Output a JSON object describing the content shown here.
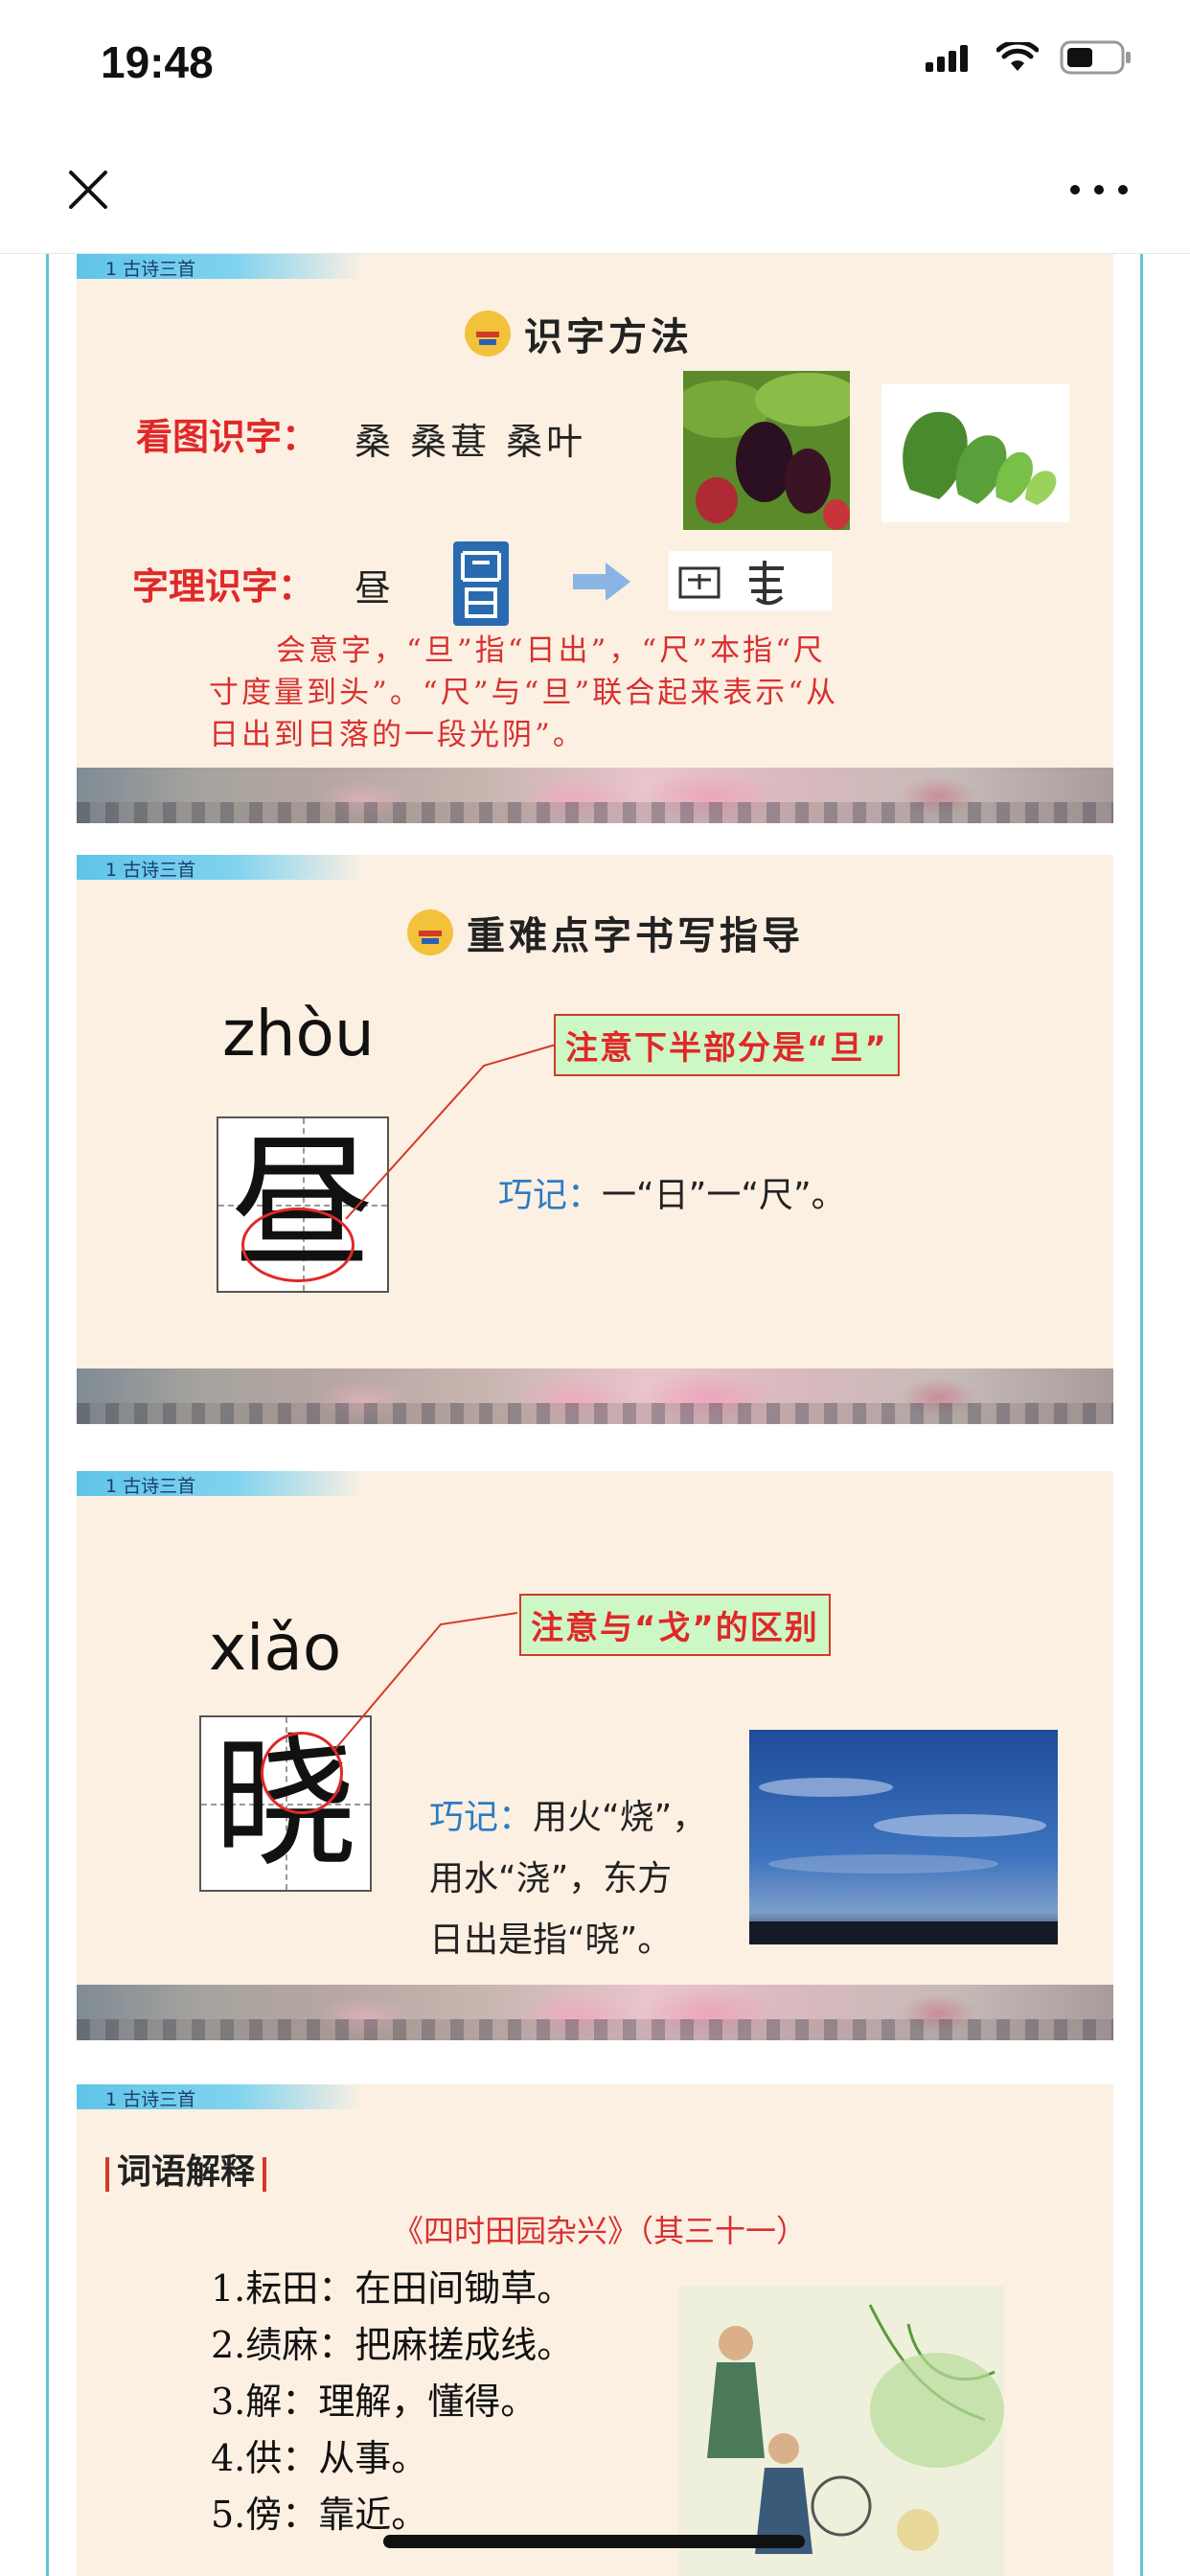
{
  "status": {
    "time": "19:48"
  },
  "nav": {},
  "colors": {
    "accent": "#e02828",
    "frame": "#5ec8cf",
    "slide_bg": "#fcf0e2",
    "tip_blue": "#2a7cc4"
  },
  "slides": [
    {
      "tag": "1 古诗三首",
      "heading": "识字方法",
      "picture_label": "看图识字：",
      "picture_chars": "桑 桑葚 桑叶",
      "logic_label": "字理识字：",
      "logic_char": "昼",
      "explanation": [
        "会意字，“旦”指“日出”，“尺”本指“尺",
        "寸度量到头”。“尺”与“旦”联合起来表示“从",
        "日出到日落的一段光阴”。"
      ]
    },
    {
      "tag": "1 古诗三首",
      "heading": "重难点字书写指导",
      "pinyin": "zhòu",
      "char": "昼",
      "note": "注意下半部分是“旦”",
      "tip_key": "巧记：",
      "tip_text": "一“日”一“尺”。"
    },
    {
      "tag": "1 古诗三首",
      "pinyin": "xiǎo",
      "char": "晓",
      "note": "注意与“戈”的区别",
      "tip_key": "巧记：",
      "tip_lines": [
        "用火“烧”，",
        "用水“浇”，东方",
        "日出是指“晓”。"
      ]
    },
    {
      "tag": "1 古诗三首",
      "title": "词语解释",
      "poem_title": "《四时田园杂兴》（其三十一）",
      "items": [
        "1.耘田：在田间锄草。",
        "2.绩麻：把麻搓成线。",
        "3.解：理解，懂得。",
        "4.供：从事。",
        "5.傍：靠近。"
      ]
    }
  ]
}
